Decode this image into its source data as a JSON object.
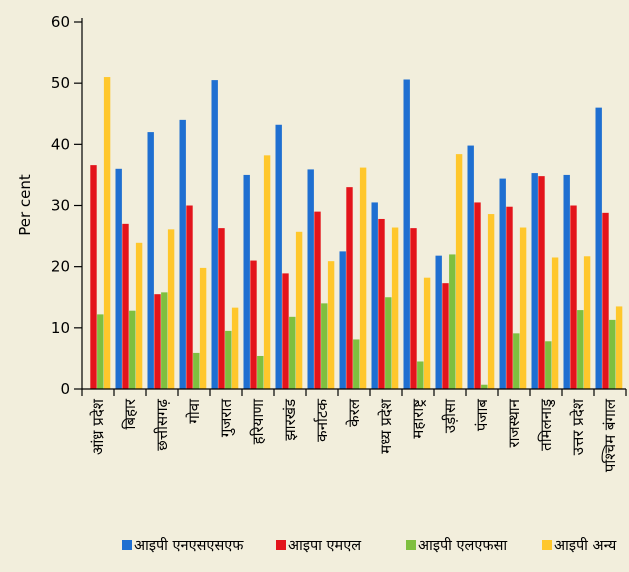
{
  "colors": {
    "background": "#f2eedc",
    "series": [
      "#1f6fd1",
      "#e3141b",
      "#7fbf3f",
      "#ffc72c"
    ]
  },
  "chart_data": {
    "type": "bar",
    "ylabel": "Per cent",
    "ylim": [
      0,
      60
    ],
    "yticks": [
      0,
      10,
      20,
      30,
      40,
      50,
      60
    ],
    "grid": false,
    "legend_position": "bottom",
    "categories": [
      "आंध्र प्रदेश",
      "बिहार",
      "छत्तीसगढ़",
      "गोवा",
      "गुजरात",
      "हरियाणा",
      "झारखंड",
      "कर्नाटक",
      "केरल",
      "मध्य प्रदेश",
      "महाराष्ट्र",
      "उड़ीसा",
      "पंजाब",
      "राजस्थान",
      "तमिलनाडु",
      "उत्तर प्रदेश",
      "पश्चिम बंगाल"
    ],
    "series": [
      {
        "name": "आइपी एनएसएसएफ",
        "values": [
          0,
          36,
          42,
          44,
          50.5,
          35,
          43.2,
          35.9,
          22.5,
          30.5,
          50.6,
          21.8,
          39.8,
          34.4,
          35.3,
          35,
          46
        ]
      },
      {
        "name": "आइपा एमएल",
        "values": [
          36.6,
          27,
          15.5,
          30,
          26.3,
          21,
          18.9,
          29,
          33,
          27.8,
          26.3,
          17.3,
          30.5,
          29.8,
          34.8,
          30,
          28.8
        ]
      },
      {
        "name": "आइपी एलएफसा",
        "values": [
          12.2,
          12.8,
          15.8,
          5.9,
          9.5,
          5.4,
          11.8,
          14,
          8.1,
          15,
          4.5,
          22,
          0.7,
          9.1,
          7.8,
          12.9,
          11.3
        ]
      },
      {
        "name": "आइपी अन्य",
        "values": [
          51,
          23.9,
          26.1,
          19.8,
          13.3,
          38.2,
          25.7,
          20.9,
          36.2,
          26.4,
          18.2,
          38.4,
          28.6,
          26.4,
          21.5,
          21.7,
          13.5
        ]
      }
    ]
  }
}
